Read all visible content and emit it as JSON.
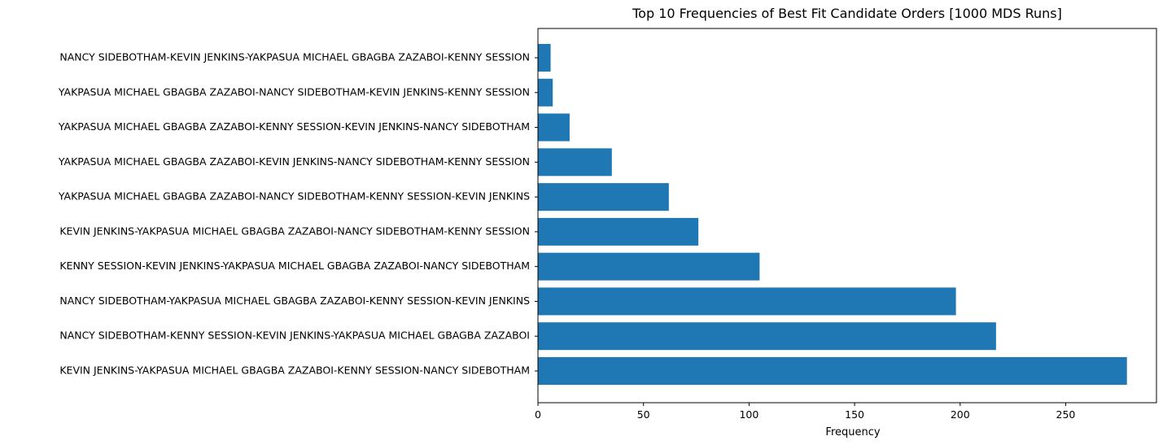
{
  "chart_data": {
    "type": "bar",
    "orientation": "horizontal",
    "title": "Top 10 Frequencies of Best Fit Candidate Orders [1000 MDS Runs]",
    "xlabel": "Frequency",
    "ylabel": "",
    "xlim": [
      0,
      293
    ],
    "xticks": [
      0,
      50,
      100,
      150,
      200,
      250
    ],
    "grid": false,
    "bar_color": "#1f77b4",
    "categories": [
      "KEVIN JENKINS-YAKPASUA MICHAEL GBAGBA ZAZABOI-KENNY SESSION-NANCY SIDEBOTHAM",
      "NANCY SIDEBOTHAM-KENNY SESSION-KEVIN JENKINS-YAKPASUA MICHAEL GBAGBA ZAZABOI",
      "NANCY SIDEBOTHAM-YAKPASUA MICHAEL GBAGBA ZAZABOI-KENNY SESSION-KEVIN JENKINS",
      "KENNY SESSION-KEVIN JENKINS-YAKPASUA MICHAEL GBAGBA ZAZABOI-NANCY SIDEBOTHAM",
      "KEVIN JENKINS-YAKPASUA MICHAEL GBAGBA ZAZABOI-NANCY SIDEBOTHAM-KENNY SESSION",
      "YAKPASUA MICHAEL GBAGBA ZAZABOI-NANCY SIDEBOTHAM-KENNY SESSION-KEVIN JENKINS",
      "YAKPASUA MICHAEL GBAGBA ZAZABOI-KEVIN JENKINS-NANCY SIDEBOTHAM-KENNY SESSION",
      "YAKPASUA MICHAEL GBAGBA ZAZABOI-KENNY SESSION-KEVIN JENKINS-NANCY SIDEBOTHAM",
      "YAKPASUA MICHAEL GBAGBA ZAZABOI-NANCY SIDEBOTHAM-KEVIN JENKINS-KENNY SESSION",
      "NANCY SIDEBOTHAM-KEVIN JENKINS-YAKPASUA MICHAEL GBAGBA ZAZABOI-KENNY SESSION"
    ],
    "values": [
      279,
      217,
      198,
      105,
      76,
      62,
      35,
      15,
      7,
      6
    ]
  }
}
